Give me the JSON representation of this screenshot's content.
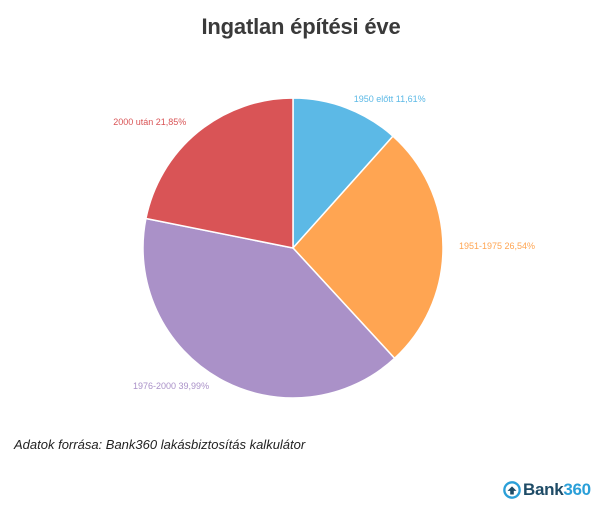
{
  "chart_data": {
    "type": "pie",
    "title": "Ingatlan építési éve",
    "slices": [
      {
        "label": "1950 előtt",
        "value": 11.61,
        "value_text": "11,61%",
        "color": "#5cb9e6"
      },
      {
        "label": "1951-1975",
        "value": 26.54,
        "value_text": "26,54%",
        "color": "#ffa552"
      },
      {
        "label": "1976-2000",
        "value": 39.99,
        "value_text": "39,99%",
        "color": "#aa91c8"
      },
      {
        "label": "2000 után",
        "value": 21.85,
        "value_text": "21,85%",
        "color": "#d95456"
      }
    ],
    "start": "12 o'clock",
    "direction": "clockwise"
  },
  "source": "Adatok forrása: Bank360 lakásbiztosítás kalkulátor",
  "brand": {
    "name_part1": "Bank",
    "name_part2": "360",
    "icon": "bank360-logo-icon",
    "primary_color": "#1e4b66",
    "accent_color": "#2a9fd8"
  }
}
